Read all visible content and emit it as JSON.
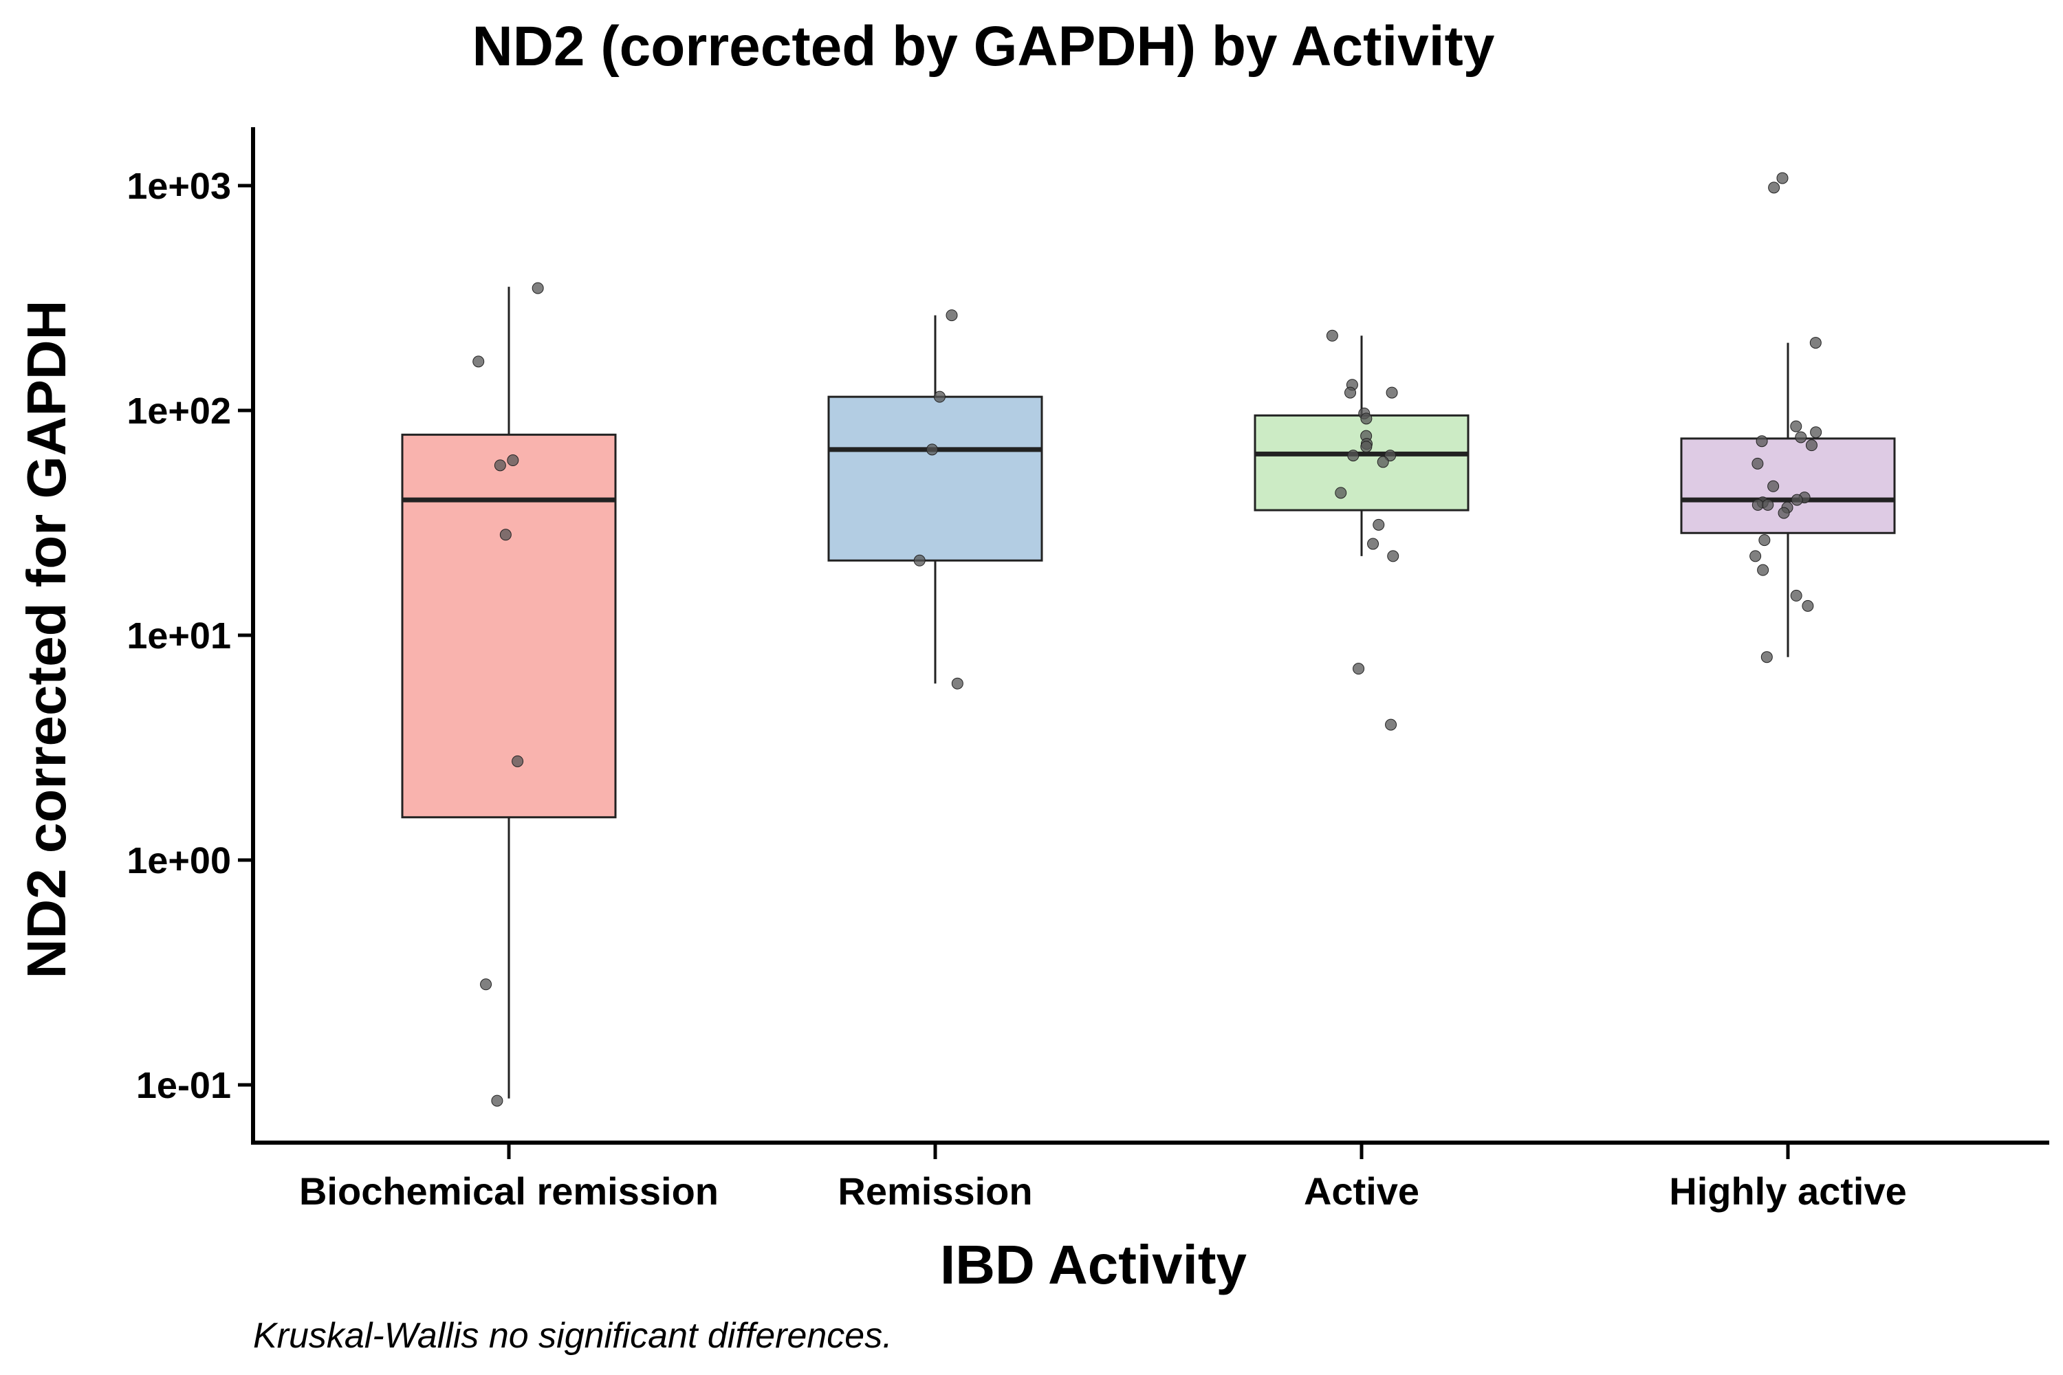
{
  "chart_data": {
    "type": "box",
    "title": "ND2 (corrected by GAPDH) by Activity",
    "xlabel": "IBD Activity",
    "ylabel": "ND2 corrected for GAPDH",
    "yscale": "log10",
    "ylim": [
      0.055,
      1800
    ],
    "yticks": [
      0.1,
      1,
      10,
      100,
      1000
    ],
    "ytick_labels": [
      "1e-01",
      "1e+00",
      "1e+01",
      "1e+02",
      "1e+03"
    ],
    "categories": [
      "Biochemical remission",
      "Remission",
      "Active",
      "Highly active"
    ],
    "colors": [
      "#f9b3ae",
      "#b3cde3",
      "#ccebc5",
      "#decbe4"
    ],
    "boxes": [
      {
        "category": "Biochemical remission",
        "whisker_low": 0.087,
        "q1": 1.55,
        "median": 40,
        "q3": 78,
        "whisker_high": 355
      },
      {
        "category": "Remission",
        "whisker_low": 6.1,
        "q1": 21.5,
        "median": 67,
        "q3": 115,
        "whisker_high": 265
      },
      {
        "category": "Active",
        "whisker_low": 22.5,
        "q1": 36,
        "median": 64,
        "q3": 95,
        "whisker_high": 215
      },
      {
        "category": "Highly active",
        "whisker_low": 8,
        "q1": 28.5,
        "median": 40,
        "q3": 75,
        "whisker_high": 200
      }
    ],
    "points": [
      [
        350,
        165,
        60,
        57,
        28,
        2.75,
        0.28,
        0.085
      ],
      [
        265,
        115,
        67,
        21.5,
        6.1
      ],
      [
        215,
        130,
        120,
        120,
        97,
        92,
        77,
        71,
        69,
        63,
        63,
        59,
        43,
        31,
        25.5,
        22.5,
        7.1,
        4
      ],
      [
        1080,
        980,
        200,
        85,
        80,
        76,
        73,
        70,
        58,
        46,
        41,
        40,
        39,
        38,
        38,
        37,
        35,
        26.5,
        22.5,
        19.5,
        15,
        13.5,
        8
      ]
    ],
    "annotation": "Kruskal-Wallis no significant differences."
  }
}
